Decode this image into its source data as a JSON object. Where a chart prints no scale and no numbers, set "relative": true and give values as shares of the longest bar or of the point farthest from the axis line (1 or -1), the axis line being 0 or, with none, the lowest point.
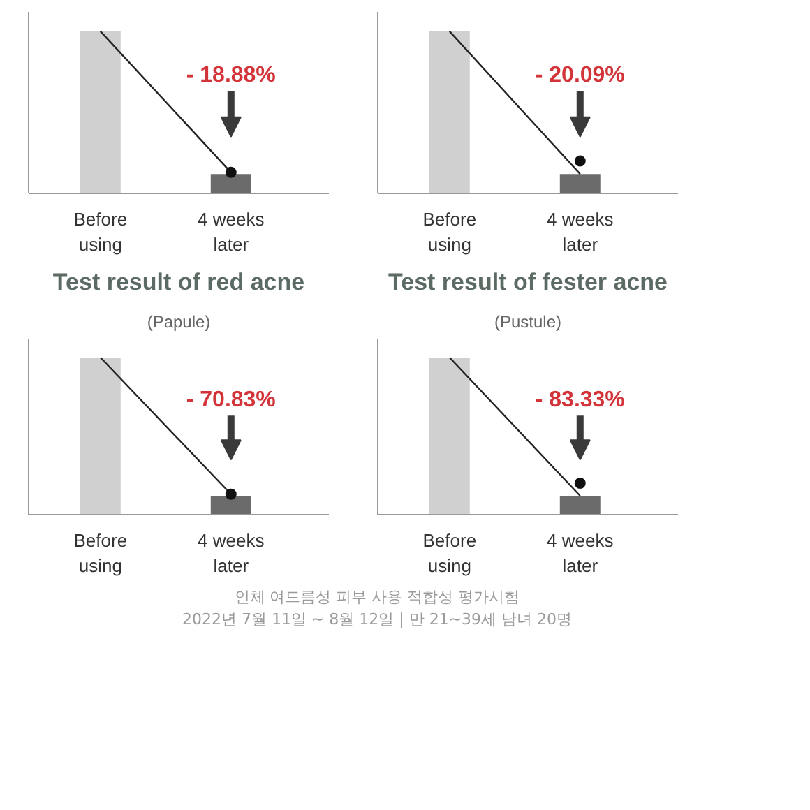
{
  "chart_data": [
    {
      "type": "bar",
      "relative": true,
      "categories": [
        "Before\nusing",
        "4 weeks\nlater"
      ],
      "series": [
        {
          "colors": [
            "#d0d0d0",
            "#6b6b6b"
          ],
          "values": [
            1,
            0.12
          ]
        },
        {
          "type": "line",
          "color": "#222222",
          "values": [
            1,
            0.13
          ]
        },
        {
          "type": "scatter",
          "color": "#111111",
          "values": [
            null,
            0.13
          ]
        }
      ],
      "annotations": [
        "- 18.88%"
      ]
    },
    {
      "type": "bar",
      "relative": true,
      "categories": [
        "Before\nusing",
        "4 weeks\nlater"
      ],
      "series": [
        {
          "type": "bar",
          "colors": [
            "#d0d0d0",
            "#6b6b6b"
          ],
          "values": [
            1,
            0.12
          ]
        },
        {
          "type": "line",
          "color": "#222222",
          "values": [
            1,
            0.12
          ]
        },
        {
          "type": "scatter",
          "color": "#111111",
          "values": [
            null,
            0.2
          ]
        }
      ],
      "annotations": [
        "- 20.09%"
      ]
    },
    {
      "type": "bar",
      "relative": true,
      "title": "Test result of red acne",
      "subtitle": "(Papule)",
      "categories": [
        "Before\nusing",
        "4 weeks\nlater"
      ],
      "series": [
        {
          "type": "bar",
          "colors": [
            "#d0d0d0",
            "#6b6b6b"
          ],
          "values": [
            1,
            0.12
          ]
        },
        {
          "type": "line",
          "color": "#222222",
          "values": [
            1,
            0.13
          ]
        },
        {
          "type": "scatter",
          "color": "#111111",
          "values": [
            null,
            0.13
          ]
        }
      ],
      "annotations": [
        "- 70.83%"
      ]
    },
    {
      "type": "bar",
      "relative": true,
      "title": "Test result of fester acne",
      "subtitle": "(Pustule)",
      "categories": [
        "Before\nusing",
        "4 weeks\nlater"
      ],
      "series": [
        {
          "type": "bar",
          "colors": [
            "#d0d0d0",
            "#6b6b6b"
          ],
          "values": [
            1,
            0.12
          ]
        },
        {
          "type": "line",
          "color": "#222222",
          "values": [
            1,
            0.12
          ]
        },
        {
          "type": "scatter",
          "color": "#111111",
          "values": [
            null,
            0.2
          ]
        }
      ],
      "annotations": [
        "- 83.33%",
        "인체 여드름성 피부 사용 적합성 평가시험",
        "2022년 7월 11일 ~ 8월 12일 | 만 21~39세 남녀 20명"
      ]
    }
  ]
}
